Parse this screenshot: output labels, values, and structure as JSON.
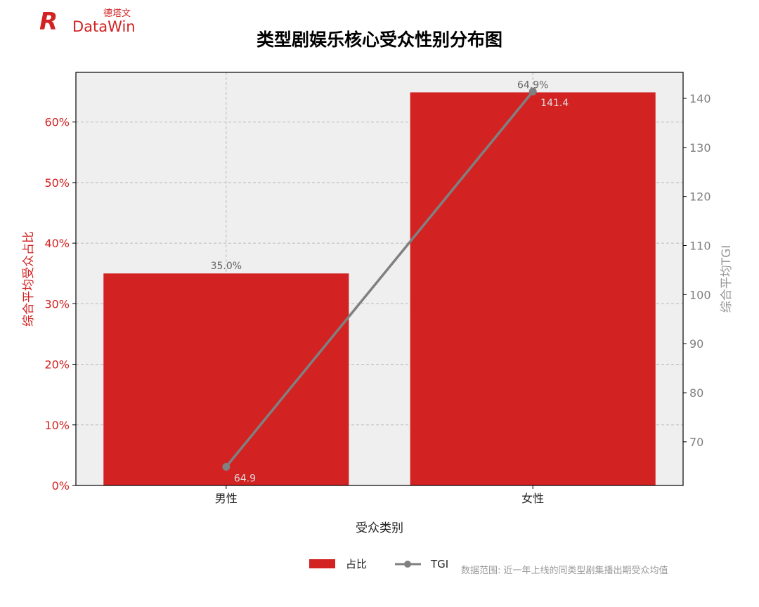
{
  "logo": {
    "brand_cn": "德塔文",
    "brand_en": "DataWin",
    "color": "#d22222"
  },
  "chart_data": {
    "type": "bar+line",
    "title": "类型剧娱乐核心受众性别分布图",
    "xlabel": "受众类别",
    "ylabel_left": "综合平均受众占比",
    "ylabel_right": "综合平均TGI",
    "categories": [
      "男性",
      "女性"
    ],
    "series": [
      {
        "name": "占比",
        "type": "bar",
        "axis": "left",
        "values": [
          35.0,
          64.9
        ],
        "labels": [
          "35.0%",
          "64.9%"
        ],
        "color": "#d22222"
      },
      {
        "name": "TGI",
        "type": "line",
        "axis": "right",
        "values": [
          64.9,
          141.4
        ],
        "labels": [
          "64.9",
          "141.4"
        ],
        "color": "#808080"
      }
    ],
    "ylim_left": [
      0,
      68.2
    ],
    "yticks_left": [
      0,
      10,
      20,
      30,
      40,
      50,
      60
    ],
    "ytick_labels_left": [
      "0%",
      "10%",
      "20%",
      "30%",
      "40%",
      "50%",
      "60%"
    ],
    "ylim_right": [
      61.1,
      145.3
    ],
    "yticks_right": [
      70,
      80,
      90,
      100,
      110,
      120,
      130,
      140
    ],
    "ytick_labels_right": [
      "70",
      "80",
      "90",
      "100",
      "110",
      "120",
      "130",
      "140"
    ],
    "grid": true,
    "legend_placement": "bottom-center",
    "background": "#efefef"
  },
  "footnote": "数据范围: 近一年上线的同类型剧集播出期受众均值"
}
